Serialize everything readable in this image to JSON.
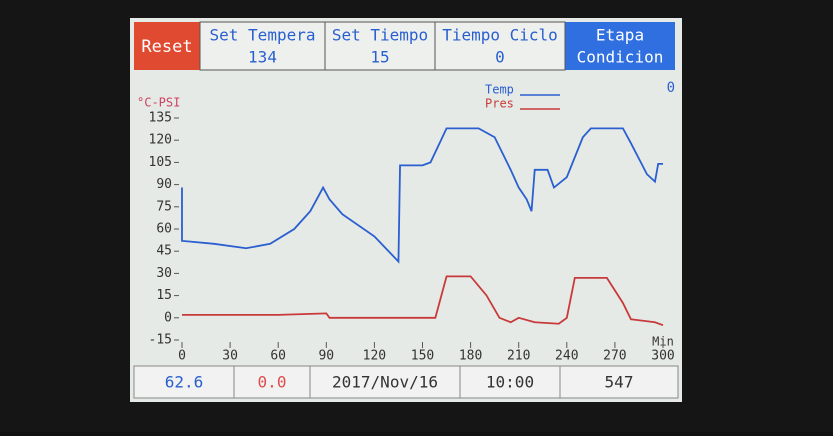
{
  "header": {
    "reset": "Reset",
    "buttons": [
      {
        "label": "Set Tempera",
        "value": 134
      },
      {
        "label": "Set Tiempo",
        "value": 15
      },
      {
        "label": "Tiempo Ciclo",
        "value": 0
      }
    ],
    "stage": {
      "label": "Etapa",
      "value": "Condicion"
    }
  },
  "chart_data": {
    "type": "line",
    "y_label": "°C-PSI",
    "x_label": "Min",
    "annotation": 0,
    "xlim": [
      0,
      300
    ],
    "ylim": [
      -15,
      135
    ],
    "xticks": [
      0,
      30,
      60,
      90,
      120,
      150,
      180,
      210,
      240,
      270,
      300
    ],
    "yticks": [
      -15,
      0,
      15,
      30,
      45,
      60,
      75,
      90,
      105,
      120,
      135
    ],
    "series": [
      {
        "name": "Temp",
        "color": "#2a5fd0",
        "x": [
          0,
          0,
          20,
          40,
          55,
          70,
          80,
          85,
          88,
          92,
          100,
          120,
          135,
          136,
          150,
          155,
          165,
          185,
          195,
          205,
          210,
          215,
          218,
          220,
          228,
          232,
          240,
          250,
          255,
          275,
          280,
          290,
          295,
          297,
          300
        ],
        "values": [
          88,
          52,
          50,
          47,
          50,
          60,
          72,
          82,
          88,
          80,
          70,
          55,
          38,
          103,
          103,
          105,
          128,
          128,
          122,
          100,
          88,
          80,
          72,
          100,
          100,
          88,
          95,
          122,
          128,
          128,
          118,
          97,
          92,
          104,
          104
        ]
      },
      {
        "name": "Pres",
        "color": "#c83a3a",
        "x": [
          0,
          60,
          90,
          92,
          158,
          165,
          180,
          190,
          198,
          205,
          210,
          220,
          235,
          240,
          245,
          265,
          275,
          280,
          295,
          300
        ],
        "values": [
          2,
          2,
          3,
          0,
          0,
          28,
          28,
          15,
          0,
          -3,
          0,
          -3,
          -4,
          0,
          27,
          27,
          10,
          -1,
          -3,
          -5
        ]
      }
    ]
  },
  "footer": [
    {
      "value": 62.6
    },
    {
      "value": "0.0"
    },
    {
      "value": "2017/Nov/16"
    },
    {
      "value": "10:00"
    },
    {
      "value": 547
    }
  ]
}
